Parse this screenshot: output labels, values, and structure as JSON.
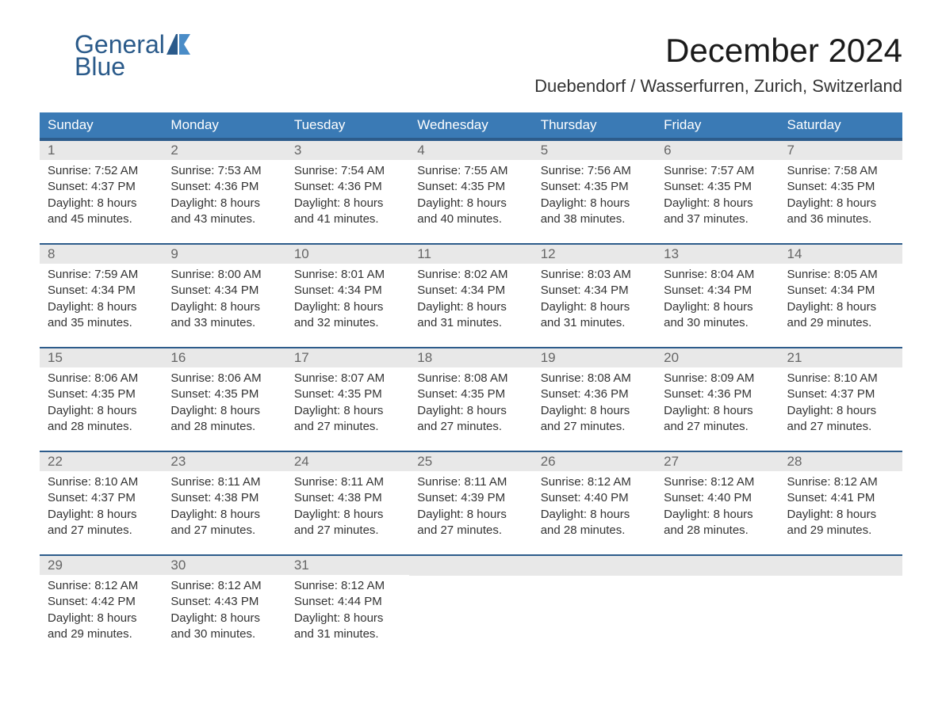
{
  "logo": {
    "general": "General",
    "blue": "Blue",
    "color_primary": "#2a5a8a",
    "color_accent": "#4a8cc7"
  },
  "title": "December 2024",
  "location": "Duebendorf / Wasserfurren, Zurich, Switzerland",
  "day_headers": [
    "Sunday",
    "Monday",
    "Tuesday",
    "Wednesday",
    "Thursday",
    "Friday",
    "Saturday"
  ],
  "colors": {
    "header_bg": "#3a7ab5",
    "header_text": "#ffffff",
    "day_number_bg": "#e8e8e8",
    "border": "#2d5c8b",
    "text": "#333333",
    "day_number_text": "#666666"
  },
  "weeks": [
    [
      {
        "day": "1",
        "sunrise": "Sunrise: 7:52 AM",
        "sunset": "Sunset: 4:37 PM",
        "daylight1": "Daylight: 8 hours",
        "daylight2": "and 45 minutes."
      },
      {
        "day": "2",
        "sunrise": "Sunrise: 7:53 AM",
        "sunset": "Sunset: 4:36 PM",
        "daylight1": "Daylight: 8 hours",
        "daylight2": "and 43 minutes."
      },
      {
        "day": "3",
        "sunrise": "Sunrise: 7:54 AM",
        "sunset": "Sunset: 4:36 PM",
        "daylight1": "Daylight: 8 hours",
        "daylight2": "and 41 minutes."
      },
      {
        "day": "4",
        "sunrise": "Sunrise: 7:55 AM",
        "sunset": "Sunset: 4:35 PM",
        "daylight1": "Daylight: 8 hours",
        "daylight2": "and 40 minutes."
      },
      {
        "day": "5",
        "sunrise": "Sunrise: 7:56 AM",
        "sunset": "Sunset: 4:35 PM",
        "daylight1": "Daylight: 8 hours",
        "daylight2": "and 38 minutes."
      },
      {
        "day": "6",
        "sunrise": "Sunrise: 7:57 AM",
        "sunset": "Sunset: 4:35 PM",
        "daylight1": "Daylight: 8 hours",
        "daylight2": "and 37 minutes."
      },
      {
        "day": "7",
        "sunrise": "Sunrise: 7:58 AM",
        "sunset": "Sunset: 4:35 PM",
        "daylight1": "Daylight: 8 hours",
        "daylight2": "and 36 minutes."
      }
    ],
    [
      {
        "day": "8",
        "sunrise": "Sunrise: 7:59 AM",
        "sunset": "Sunset: 4:34 PM",
        "daylight1": "Daylight: 8 hours",
        "daylight2": "and 35 minutes."
      },
      {
        "day": "9",
        "sunrise": "Sunrise: 8:00 AM",
        "sunset": "Sunset: 4:34 PM",
        "daylight1": "Daylight: 8 hours",
        "daylight2": "and 33 minutes."
      },
      {
        "day": "10",
        "sunrise": "Sunrise: 8:01 AM",
        "sunset": "Sunset: 4:34 PM",
        "daylight1": "Daylight: 8 hours",
        "daylight2": "and 32 minutes."
      },
      {
        "day": "11",
        "sunrise": "Sunrise: 8:02 AM",
        "sunset": "Sunset: 4:34 PM",
        "daylight1": "Daylight: 8 hours",
        "daylight2": "and 31 minutes."
      },
      {
        "day": "12",
        "sunrise": "Sunrise: 8:03 AM",
        "sunset": "Sunset: 4:34 PM",
        "daylight1": "Daylight: 8 hours",
        "daylight2": "and 31 minutes."
      },
      {
        "day": "13",
        "sunrise": "Sunrise: 8:04 AM",
        "sunset": "Sunset: 4:34 PM",
        "daylight1": "Daylight: 8 hours",
        "daylight2": "and 30 minutes."
      },
      {
        "day": "14",
        "sunrise": "Sunrise: 8:05 AM",
        "sunset": "Sunset: 4:34 PM",
        "daylight1": "Daylight: 8 hours",
        "daylight2": "and 29 minutes."
      }
    ],
    [
      {
        "day": "15",
        "sunrise": "Sunrise: 8:06 AM",
        "sunset": "Sunset: 4:35 PM",
        "daylight1": "Daylight: 8 hours",
        "daylight2": "and 28 minutes."
      },
      {
        "day": "16",
        "sunrise": "Sunrise: 8:06 AM",
        "sunset": "Sunset: 4:35 PM",
        "daylight1": "Daylight: 8 hours",
        "daylight2": "and 28 minutes."
      },
      {
        "day": "17",
        "sunrise": "Sunrise: 8:07 AM",
        "sunset": "Sunset: 4:35 PM",
        "daylight1": "Daylight: 8 hours",
        "daylight2": "and 27 minutes."
      },
      {
        "day": "18",
        "sunrise": "Sunrise: 8:08 AM",
        "sunset": "Sunset: 4:35 PM",
        "daylight1": "Daylight: 8 hours",
        "daylight2": "and 27 minutes."
      },
      {
        "day": "19",
        "sunrise": "Sunrise: 8:08 AM",
        "sunset": "Sunset: 4:36 PM",
        "daylight1": "Daylight: 8 hours",
        "daylight2": "and 27 minutes."
      },
      {
        "day": "20",
        "sunrise": "Sunrise: 8:09 AM",
        "sunset": "Sunset: 4:36 PM",
        "daylight1": "Daylight: 8 hours",
        "daylight2": "and 27 minutes."
      },
      {
        "day": "21",
        "sunrise": "Sunrise: 8:10 AM",
        "sunset": "Sunset: 4:37 PM",
        "daylight1": "Daylight: 8 hours",
        "daylight2": "and 27 minutes."
      }
    ],
    [
      {
        "day": "22",
        "sunrise": "Sunrise: 8:10 AM",
        "sunset": "Sunset: 4:37 PM",
        "daylight1": "Daylight: 8 hours",
        "daylight2": "and 27 minutes."
      },
      {
        "day": "23",
        "sunrise": "Sunrise: 8:11 AM",
        "sunset": "Sunset: 4:38 PM",
        "daylight1": "Daylight: 8 hours",
        "daylight2": "and 27 minutes."
      },
      {
        "day": "24",
        "sunrise": "Sunrise: 8:11 AM",
        "sunset": "Sunset: 4:38 PM",
        "daylight1": "Daylight: 8 hours",
        "daylight2": "and 27 minutes."
      },
      {
        "day": "25",
        "sunrise": "Sunrise: 8:11 AM",
        "sunset": "Sunset: 4:39 PM",
        "daylight1": "Daylight: 8 hours",
        "daylight2": "and 27 minutes."
      },
      {
        "day": "26",
        "sunrise": "Sunrise: 8:12 AM",
        "sunset": "Sunset: 4:40 PM",
        "daylight1": "Daylight: 8 hours",
        "daylight2": "and 28 minutes."
      },
      {
        "day": "27",
        "sunrise": "Sunrise: 8:12 AM",
        "sunset": "Sunset: 4:40 PM",
        "daylight1": "Daylight: 8 hours",
        "daylight2": "and 28 minutes."
      },
      {
        "day": "28",
        "sunrise": "Sunrise: 8:12 AM",
        "sunset": "Sunset: 4:41 PM",
        "daylight1": "Daylight: 8 hours",
        "daylight2": "and 29 minutes."
      }
    ],
    [
      {
        "day": "29",
        "sunrise": "Sunrise: 8:12 AM",
        "sunset": "Sunset: 4:42 PM",
        "daylight1": "Daylight: 8 hours",
        "daylight2": "and 29 minutes."
      },
      {
        "day": "30",
        "sunrise": "Sunrise: 8:12 AM",
        "sunset": "Sunset: 4:43 PM",
        "daylight1": "Daylight: 8 hours",
        "daylight2": "and 30 minutes."
      },
      {
        "day": "31",
        "sunrise": "Sunrise: 8:12 AM",
        "sunset": "Sunset: 4:44 PM",
        "daylight1": "Daylight: 8 hours",
        "daylight2": "and 31 minutes."
      },
      null,
      null,
      null,
      null
    ]
  ]
}
